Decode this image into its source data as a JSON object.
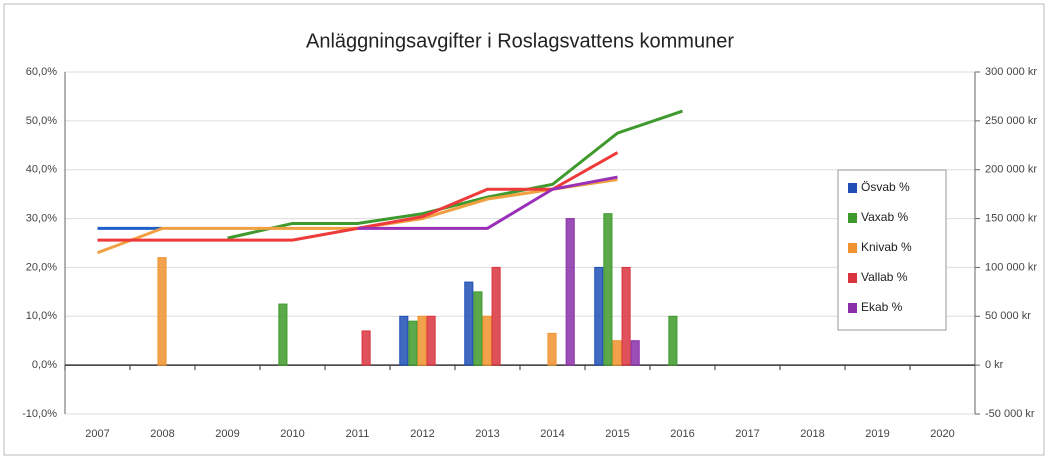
{
  "chart_data": {
    "type": "bar",
    "title": "Anläggningsavgifter i Roslagsvattens kommuner",
    "categories": [
      "2007",
      "2008",
      "2009",
      "2010",
      "2011",
      "2012",
      "2013",
      "2014",
      "2015",
      "2016",
      "2017",
      "2018",
      "2019",
      "2020"
    ],
    "series": [
      {
        "name": "Ösvab %",
        "color": "#1f4fb5",
        "values": [
          null,
          null,
          null,
          null,
          null,
          10,
          17,
          null,
          20,
          null,
          null,
          null,
          null,
          null
        ]
      },
      {
        "name": "Vaxab %",
        "color": "#3e9a2c",
        "values": [
          null,
          null,
          null,
          12.5,
          null,
          9,
          15,
          null,
          31,
          10,
          null,
          null,
          null,
          null
        ]
      },
      {
        "name": "Knivab %",
        "color": "#f0922e",
        "values": [
          null,
          22,
          null,
          null,
          null,
          10,
          10,
          6.5,
          5,
          null,
          null,
          null,
          null,
          null
        ]
      },
      {
        "name": "Vallab %",
        "color": "#d9343f",
        "values": [
          null,
          null,
          null,
          null,
          7,
          10,
          20,
          null,
          20,
          null,
          null,
          null,
          null,
          null
        ]
      },
      {
        "name": "Ekab %",
        "color": "#8a2fa8",
        "values": [
          null,
          null,
          null,
          null,
          null,
          null,
          null,
          30,
          5,
          null,
          null,
          null,
          null,
          null
        ]
      }
    ],
    "lines": [
      {
        "color": "#1f5fc8",
        "values": [
          140000,
          140000,
          null,
          null,
          null,
          null,
          null,
          null,
          null,
          null,
          null,
          null,
          null,
          null
        ]
      },
      {
        "color": "#3e9a2c",
        "values": [
          null,
          null,
          130000,
          145000,
          145000,
          155000,
          172000,
          185000,
          237500,
          260000,
          null,
          null,
          null,
          null
        ]
      },
      {
        "color": "#f0a040",
        "values": [
          115000,
          140000,
          140000,
          140000,
          140000,
          150000,
          170000,
          180000,
          190000,
          null,
          null,
          null,
          null,
          null
        ]
      },
      {
        "color": "#ee3a3a",
        "values": [
          128000,
          128000,
          128000,
          128000,
          140000,
          152000,
          180000,
          180000,
          217500,
          null,
          null,
          null,
          null,
          null
        ]
      },
      {
        "color": "#9a30b8",
        "values": [
          null,
          null,
          null,
          null,
          140000,
          140000,
          140000,
          180000,
          192500,
          null,
          null,
          null,
          null,
          null
        ]
      }
    ],
    "ylim": [
      -10,
      60
    ],
    "yticks": [
      {
        "value": -10,
        "label": "-10,0%"
      },
      {
        "value": 0,
        "label": "0,0%"
      },
      {
        "value": 10,
        "label": "10,0%"
      },
      {
        "value": 20,
        "label": "20,0%"
      },
      {
        "value": 30,
        "label": "30,0%"
      },
      {
        "value": 40,
        "label": "40,0%"
      },
      {
        "value": 50,
        "label": "50,0%"
      },
      {
        "value": 60,
        "label": "60,0%"
      }
    ],
    "y2lim": [
      -50000,
      300000
    ],
    "y2ticks": [
      {
        "value": -50000,
        "label": "-50 000 kr"
      },
      {
        "value": 0,
        "label": "0 kr"
      },
      {
        "value": 50000,
        "label": "50 000 kr"
      },
      {
        "value": 100000,
        "label": "100 000 kr"
      },
      {
        "value": 150000,
        "label": "150 000 kr"
      },
      {
        "value": 200000,
        "label": "200 000 kr"
      },
      {
        "value": 250000,
        "label": "250 000 kr"
      },
      {
        "value": 300000,
        "label": "300 000 kr"
      }
    ],
    "grid": true,
    "legend": "right"
  }
}
